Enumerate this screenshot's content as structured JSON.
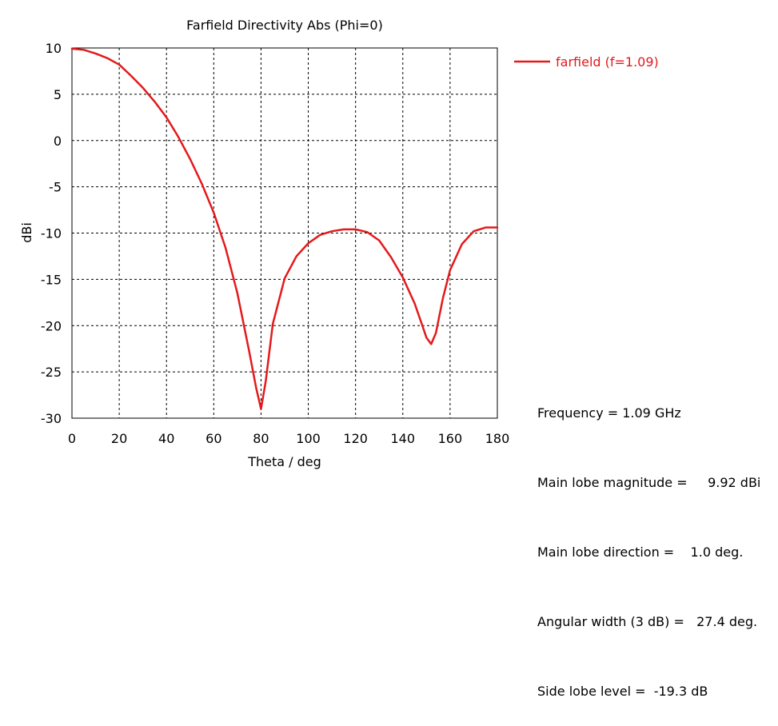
{
  "chart_data": {
    "type": "line",
    "title": "Farfield Directivity Abs (Phi=0)",
    "xlabel": "Theta / deg",
    "ylabel": "dBi",
    "xlim": [
      0,
      180
    ],
    "ylim": [
      -30,
      10
    ],
    "xticks": [
      "0",
      "20",
      "40",
      "60",
      "80",
      "100",
      "120",
      "140",
      "160",
      "180"
    ],
    "yticks": [
      "10",
      "5",
      "0",
      "-5",
      "-10",
      "-15",
      "-20",
      "-25",
      "-30"
    ],
    "grid": true,
    "legend_position": "top-right, outside plot",
    "series": [
      {
        "name": "farfield (f=1.09)",
        "color": "#e31a1c",
        "x": [
          0,
          5,
          10,
          15,
          20,
          25,
          30,
          35,
          40,
          45,
          50,
          55,
          60,
          65,
          70,
          75,
          78,
          80,
          82,
          85,
          90,
          95,
          100,
          105,
          110,
          115,
          120,
          125,
          130,
          135,
          140,
          145,
          148,
          150,
          152,
          154,
          157,
          160,
          165,
          170,
          175,
          180
        ],
        "y": [
          9.92,
          9.8,
          9.4,
          8.9,
          8.2,
          7.0,
          5.7,
          4.2,
          2.5,
          0.4,
          -2.0,
          -4.7,
          -7.8,
          -11.6,
          -16.5,
          -22.8,
          -26.8,
          -29.0,
          -26.0,
          -19.8,
          -14.9,
          -12.5,
          -11.1,
          -10.2,
          -9.8,
          -9.6,
          -9.6,
          -9.9,
          -10.8,
          -12.6,
          -14.8,
          -17.6,
          -19.8,
          -21.3,
          -22.0,
          -20.8,
          -17.0,
          -14.0,
          -11.2,
          -9.8,
          -9.4,
          -9.4
        ]
      }
    ]
  },
  "results": {
    "frequency": "Frequency = 1.09 GHz",
    "main_lobe_magnitude": "Main lobe magnitude =     9.92 dBi",
    "main_lobe_direction": "Main lobe direction =    1.0 deg.",
    "angular_width": "Angular width (3 dB) =   27.4 deg.",
    "side_lobe_level": "Side lobe level =  -19.3 dB"
  }
}
